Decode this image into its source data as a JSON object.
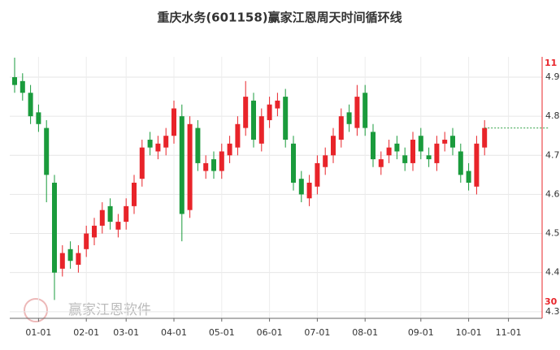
{
  "chart_data": {
    "type": "candlestick",
    "title": "重庆水务(601158)赢家江恩周天时间循环线",
    "categories": [
      null,
      null,
      null,
      "01-01",
      null,
      null,
      null,
      null,
      null,
      "02-01",
      null,
      null,
      null,
      null,
      "03-01",
      null,
      null,
      null,
      null,
      null,
      "04-01",
      null,
      null,
      null,
      null,
      null,
      "05-01",
      null,
      null,
      null,
      null,
      null,
      "06-01",
      null,
      null,
      null,
      null,
      null,
      "07-01",
      null,
      null,
      null,
      null,
      null,
      "08-01",
      null,
      null,
      null,
      null,
      null,
      null,
      "09-01",
      null,
      null,
      null,
      null,
      null,
      "10-01",
      null,
      null,
      null,
      null,
      "11-01",
      null,
      null,
      null,
      null,
      null
    ],
    "open": [
      4.9,
      4.89,
      4.86,
      4.81,
      4.77,
      4.63,
      4.41,
      4.46,
      4.42,
      4.46,
      4.49,
      4.52,
      4.57,
      4.51,
      4.53,
      4.57,
      4.64,
      4.74,
      4.71,
      4.72,
      4.75,
      4.8,
      4.56,
      4.77,
      4.66,
      4.69,
      4.66,
      4.7,
      4.72,
      4.77,
      4.84,
      4.73,
      4.79,
      4.82,
      4.85,
      4.73,
      4.64,
      4.59,
      4.62,
      4.67,
      4.7,
      4.74,
      4.81,
      4.77,
      4.86,
      4.76,
      4.67,
      4.7,
      4.73,
      4.7,
      4.68,
      4.75,
      4.7,
      4.68,
      4.73,
      4.75,
      4.71,
      4.66,
      4.62,
      4.72,
      null,
      null,
      null,
      null,
      null,
      null,
      null,
      null
    ],
    "high": [
      4.95,
      4.91,
      4.88,
      4.83,
      4.79,
      4.65,
      4.47,
      4.48,
      4.47,
      4.52,
      4.54,
      4.58,
      4.59,
      4.55,
      4.59,
      4.65,
      4.74,
      4.76,
      4.75,
      4.77,
      4.84,
      4.83,
      4.8,
      4.79,
      4.7,
      4.71,
      4.73,
      4.75,
      4.8,
      4.89,
      4.86,
      4.82,
      4.85,
      4.86,
      4.87,
      4.75,
      4.66,
      4.65,
      4.7,
      4.72,
      4.77,
      4.82,
      4.83,
      4.88,
      4.88,
      4.78,
      4.71,
      4.74,
      4.75,
      4.72,
      4.76,
      4.77,
      4.72,
      4.75,
      4.76,
      4.77,
      4.73,
      4.68,
      4.75,
      4.79,
      null,
      null,
      null,
      null,
      null,
      null,
      null,
      null
    ],
    "low": [
      4.86,
      4.84,
      4.78,
      4.76,
      4.58,
      4.33,
      4.39,
      4.41,
      4.4,
      4.44,
      4.47,
      4.5,
      4.51,
      4.49,
      4.51,
      4.55,
      4.62,
      4.7,
      4.69,
      4.7,
      4.73,
      4.48,
      4.54,
      4.66,
      4.64,
      4.64,
      4.64,
      4.68,
      4.7,
      4.75,
      4.72,
      4.71,
      4.77,
      4.8,
      4.72,
      4.61,
      4.58,
      4.57,
      4.6,
      4.65,
      4.68,
      4.72,
      4.76,
      4.75,
      4.75,
      4.67,
      4.65,
      4.68,
      4.69,
      4.66,
      4.66,
      4.69,
      4.67,
      4.66,
      4.71,
      4.7,
      4.63,
      4.61,
      4.6,
      4.7,
      null,
      null,
      null,
      null,
      null,
      null,
      null,
      null
    ],
    "close": [
      4.88,
      4.86,
      4.8,
      4.78,
      4.65,
      4.4,
      4.45,
      4.43,
      4.45,
      4.5,
      4.52,
      4.56,
      4.53,
      4.53,
      4.57,
      4.63,
      4.72,
      4.72,
      4.73,
      4.75,
      4.82,
      4.55,
      4.78,
      4.68,
      4.68,
      4.66,
      4.71,
      4.73,
      4.78,
      4.85,
      4.74,
      4.8,
      4.83,
      4.84,
      4.74,
      4.63,
      4.6,
      4.63,
      4.68,
      4.7,
      4.75,
      4.8,
      4.78,
      4.85,
      4.77,
      4.69,
      4.69,
      4.72,
      4.71,
      4.68,
      4.74,
      4.71,
      4.69,
      4.73,
      4.74,
      4.72,
      4.65,
      4.63,
      4.73,
      4.77,
      null,
      null,
      null,
      null,
      null,
      null,
      null,
      null
    ],
    "up_color": "#e8242a",
    "down_color": "#1a9b3c",
    "projection": {
      "color": "#2ea043",
      "values": [
        null,
        null,
        null,
        null,
        null,
        null,
        null,
        null,
        null,
        null,
        null,
        null,
        null,
        null,
        null,
        null,
        null,
        null,
        null,
        null,
        null,
        null,
        null,
        null,
        null,
        null,
        null,
        null,
        null,
        null,
        null,
        null,
        null,
        null,
        null,
        null,
        null,
        null,
        null,
        null,
        null,
        null,
        null,
        null,
        null,
        null,
        null,
        null,
        null,
        null,
        null,
        null,
        null,
        null,
        null,
        null,
        null,
        null,
        null,
        4.77,
        4.77,
        4.77,
        4.77,
        4.77,
        4.77,
        4.77,
        4.77,
        4.77
      ]
    },
    "ylim": [
      4.283,
      4.952
    ],
    "yticks": [
      4.3,
      4.4,
      4.5,
      4.6,
      4.7,
      4.8,
      4.9
    ],
    "grid": true,
    "cycle_labels": [
      "11",
      "30"
    ],
    "cycle_color": "#e8242a",
    "watermark": "赢家江恩软件"
  }
}
